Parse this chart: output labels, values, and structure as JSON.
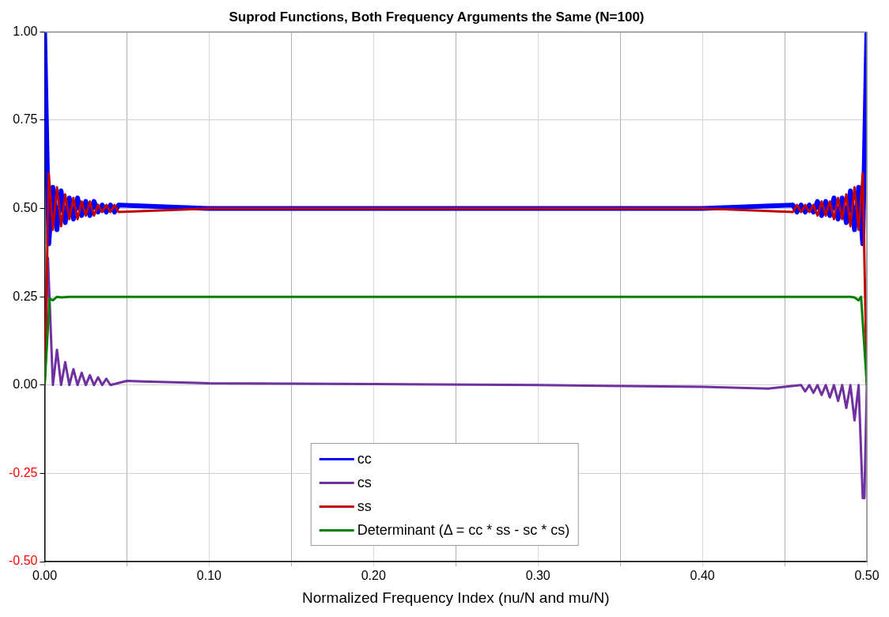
{
  "chart_data": {
    "type": "line",
    "title": "Suprod Functions, Both Frequency Arguments the Same (N=100)",
    "xlabel": "Normalized Frequency Index (nu/N and mu/N)",
    "xlim": [
      0,
      0.5
    ],
    "xticks": [
      {
        "value": 0,
        "label": "0.00"
      },
      {
        "value": 0.05,
        "label": null
      },
      {
        "value": 0.1,
        "label": "0.10"
      },
      {
        "value": 0.15,
        "label": null
      },
      {
        "value": 0.2,
        "label": "0.20"
      },
      {
        "value": 0.25,
        "label": null
      },
      {
        "value": 0.3,
        "label": "0.30"
      },
      {
        "value": 0.35,
        "label": null
      },
      {
        "value": 0.4,
        "label": "0.40"
      },
      {
        "value": 0.45,
        "label": null
      },
      {
        "value": 0.5,
        "label": "0.50"
      }
    ],
    "ylim": [
      -0.5,
      1
    ],
    "yticks": [
      {
        "value": -0.5,
        "label": "-0.50"
      },
      {
        "value": -0.25,
        "label": "-0.25"
      },
      {
        "value": 0,
        "label": "0.00"
      },
      {
        "value": 0.25,
        "label": "0.25"
      },
      {
        "value": 0.5,
        "label": "0.50"
      },
      {
        "value": 0.75,
        "label": "0.75"
      },
      {
        "value": 1,
        "label": "1.00"
      }
    ],
    "grid": true,
    "legend": "bottom",
    "marker": "none",
    "line_style": "solid",
    "series": [
      {
        "name": "cc",
        "color": "#0000ff",
        "x": [
          0,
          0.0025,
          0.005,
          0.0075,
          0.01,
          0.0125,
          0.015,
          0.0175,
          0.02,
          0.0225,
          0.025,
          0.0275,
          0.03,
          0.0325,
          0.035,
          0.0375,
          0.04,
          0.0425,
          0.045,
          0.1,
          0.2,
          0.3,
          0.4,
          0.455,
          0.4575,
          0.46,
          0.4625,
          0.465,
          0.4675,
          0.47,
          0.4725,
          0.475,
          0.4775,
          0.48,
          0.4825,
          0.485,
          0.4875,
          0.49,
          0.4925,
          0.495,
          0.4975,
          0.5
        ],
        "values": [
          1.0,
          0.4,
          0.56,
          0.44,
          0.55,
          0.46,
          0.53,
          0.47,
          0.53,
          0.48,
          0.52,
          0.48,
          0.52,
          0.49,
          0.51,
          0.49,
          0.51,
          0.49,
          0.51,
          0.5,
          0.5,
          0.5,
          0.5,
          0.51,
          0.49,
          0.51,
          0.49,
          0.51,
          0.49,
          0.52,
          0.48,
          0.52,
          0.48,
          0.53,
          0.47,
          0.53,
          0.46,
          0.55,
          0.44,
          0.56,
          0.4,
          1.0
        ]
      },
      {
        "name": "cs",
        "color": "#7030a0",
        "x": [
          0,
          0.002,
          0.005,
          0.0075,
          0.01,
          0.0125,
          0.015,
          0.0175,
          0.02,
          0.0225,
          0.025,
          0.0275,
          0.03,
          0.0325,
          0.035,
          0.0375,
          0.04,
          0.05,
          0.06,
          0.1,
          0.2,
          0.3,
          0.4,
          0.44,
          0.46,
          0.4625,
          0.465,
          0.4675,
          0.47,
          0.4725,
          0.475,
          0.4775,
          0.48,
          0.4825,
          0.485,
          0.4875,
          0.49,
          0.4925,
          0.495,
          0.4975,
          0.4985,
          0.5
        ],
        "values": [
          0,
          0.36,
          0,
          0.1,
          0,
          0.065,
          0,
          0.045,
          0,
          0.035,
          0,
          0.028,
          0,
          0.022,
          0,
          0.018,
          0,
          0.012,
          0.01,
          0.005,
          0.003,
          0,
          -0.005,
          -0.01,
          0,
          -0.018,
          0,
          -0.022,
          0,
          -0.028,
          0,
          -0.035,
          0,
          -0.045,
          0,
          -0.065,
          0,
          -0.1,
          0,
          -0.32,
          -0.32,
          0
        ]
      },
      {
        "name": "ss",
        "color": "#c00000",
        "x": [
          0,
          0.0025,
          0.005,
          0.0075,
          0.01,
          0.0125,
          0.015,
          0.0175,
          0.02,
          0.0225,
          0.025,
          0.0275,
          0.03,
          0.0325,
          0.035,
          0.0375,
          0.04,
          0.0425,
          0.045,
          0.1,
          0.2,
          0.3,
          0.4,
          0.455,
          0.4575,
          0.46,
          0.4625,
          0.465,
          0.4675,
          0.47,
          0.4725,
          0.475,
          0.4775,
          0.48,
          0.4825,
          0.485,
          0.4875,
          0.49,
          0.4925,
          0.495,
          0.4975,
          0.5
        ],
        "values": [
          0,
          0.6,
          0.44,
          0.56,
          0.45,
          0.54,
          0.47,
          0.53,
          0.47,
          0.52,
          0.48,
          0.52,
          0.48,
          0.51,
          0.49,
          0.51,
          0.49,
          0.51,
          0.49,
          0.5,
          0.5,
          0.5,
          0.5,
          0.49,
          0.51,
          0.49,
          0.51,
          0.49,
          0.51,
          0.48,
          0.52,
          0.48,
          0.52,
          0.47,
          0.53,
          0.47,
          0.54,
          0.45,
          0.56,
          0.44,
          0.6,
          0
        ]
      },
      {
        "name": "Determinant (Δ = cc * ss - sc * cs)",
        "color": "#008000",
        "x": [
          0,
          0.003,
          0.005,
          0.0075,
          0.01,
          0.015,
          0.1,
          0.2,
          0.3,
          0.4,
          0.49,
          0.4925,
          0.495,
          0.4965,
          0.5
        ],
        "values": [
          0,
          0.245,
          0.24,
          0.25,
          0.248,
          0.25,
          0.25,
          0.25,
          0.25,
          0.25,
          0.25,
          0.248,
          0.24,
          0.25,
          0
        ]
      }
    ]
  }
}
